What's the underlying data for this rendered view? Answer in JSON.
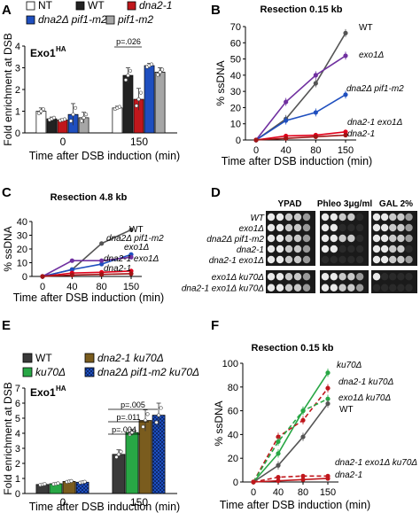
{
  "panel_letters": [
    "A",
    "B",
    "C",
    "D",
    "E",
    "F"
  ],
  "chart_data": [
    {
      "panel": "A",
      "type": "bar",
      "title": "Exo1",
      "title_sup": "HA",
      "ylabel": "Fold enrichment at DSB",
      "xlabel": "Time after DSB induction (min)",
      "ylim": [
        0,
        4
      ],
      "yticks": [
        0,
        1,
        2,
        3,
        4
      ],
      "categories": [
        "0",
        "150"
      ],
      "legend": [
        "NT",
        "WT",
        "dna2-1",
        "dna2Δ pif1-m2",
        "pif1-m2"
      ],
      "series": [
        {
          "name": "NT",
          "color": "#ffffff",
          "values": [
            1.0,
            1.15
          ],
          "errors": [
            0.15,
            0.08
          ]
        },
        {
          "name": "WT",
          "color": "#222222",
          "values": [
            0.65,
            2.65
          ],
          "errors": [
            0.08,
            0.35
          ]
        },
        {
          "name": "dna2-1",
          "color": "#c0171c",
          "values": [
            0.6,
            1.55
          ],
          "errors": [
            0.05,
            0.5
          ]
        },
        {
          "name": "dna2Δ pif1-m2",
          "color": "#1f4fbf",
          "values": [
            0.85,
            3.1
          ],
          "errors": [
            0.5,
            0.1
          ]
        },
        {
          "name": "pif1-m2",
          "color": "#a6a6a6",
          "values": [
            0.7,
            2.8
          ],
          "errors": [
            0.25,
            0.2
          ]
        }
      ],
      "annotations": [
        {
          "text": "p=.026"
        }
      ]
    },
    {
      "panel": "B",
      "type": "line",
      "title": "Resection 0.15 kb",
      "ylabel": "% ssDNA",
      "xlabel": "Time after DSB induction (min)",
      "x": [
        0,
        40,
        80,
        150
      ],
      "ylim": [
        0,
        70
      ],
      "yticks": [
        0,
        10,
        20,
        30,
        40,
        50,
        60,
        70
      ],
      "series": [
        {
          "name": "WT",
          "color": "#555555",
          "values": [
            0,
            13,
            35,
            66
          ]
        },
        {
          "name": "exo1Δ",
          "color": "#7030a0",
          "values": [
            0,
            23.5,
            40,
            52
          ]
        },
        {
          "name": "dna2Δ pif1-m2",
          "color": "#1f4fbf",
          "values": [
            0,
            12,
            17,
            28
          ]
        },
        {
          "name": "dna2-1 exo1Δ",
          "color": "#e0001a",
          "values": [
            0,
            2.5,
            3,
            5
          ]
        },
        {
          "name": "dna2-1",
          "color": "#a01515",
          "values": [
            0,
            1,
            2,
            3
          ]
        }
      ]
    },
    {
      "panel": "C",
      "type": "line",
      "title": "Resection 4.8 kb",
      "ylabel": "% ssDNA",
      "xlabel": "Time after DSB induction (min)",
      "x": [
        0,
        40,
        80,
        150
      ],
      "ylim": [
        0,
        40
      ],
      "yticks": [
        0,
        10,
        20,
        30,
        40
      ],
      "series": [
        {
          "name": "WT",
          "color": "#555555",
          "values": [
            0,
            5,
            24,
            34
          ]
        },
        {
          "name": "dna2Δ pif1-m2",
          "color": "#1f4fbf",
          "values": [
            0,
            5,
            9,
            16
          ]
        },
        {
          "name": "exo1Δ",
          "color": "#7030a0",
          "values": [
            0,
            11.5,
            11.5,
            14
          ]
        },
        {
          "name": "dna2-1 exo1Δ",
          "color": "#e0001a",
          "values": [
            0,
            2.5,
            3,
            4
          ]
        },
        {
          "name": "dna2-1",
          "color": "#a01515",
          "values": [
            0,
            1,
            1.5,
            2
          ]
        }
      ]
    },
    {
      "panel": "E",
      "type": "bar",
      "title": "Exo1",
      "title_sup": "HA",
      "ylabel": "Fold enrichment at DSB",
      "xlabel": "Time after DSB induction (min)",
      "ylim": [
        0,
        7
      ],
      "yticks": [
        0,
        1,
        2,
        3,
        4,
        5,
        6,
        7
      ],
      "categories": [
        "0",
        "150"
      ],
      "legend": [
        "WT",
        "dna2-1 ku70Δ",
        "ku70Δ",
        "dna2Δ pif1-m2 ku70Δ"
      ],
      "series": [
        {
          "name": "WT",
          "color": "#3a3a3a",
          "values": [
            0.6,
            2.6
          ],
          "errors": [
            0.05,
            0.3
          ]
        },
        {
          "name": "ku70Δ",
          "color": "#28a745",
          "values": [
            0.65,
            4.05
          ],
          "errors": [
            0.05,
            0.2
          ]
        },
        {
          "name": "dna2-1 ku70Δ",
          "color": "#7a5c1e",
          "values": [
            0.8,
            4.85
          ],
          "errors": [
            0.05,
            0.7
          ]
        },
        {
          "name": "dna2Δ pif1-m2 ku70Δ",
          "color": "#1f4fbf",
          "values": [
            0.75,
            5.2
          ],
          "errors": [
            0.05,
            0.8
          ]
        }
      ],
      "annotations": [
        {
          "text": "p=.004"
        },
        {
          "text": "p=.011"
        },
        {
          "text": "p=.005"
        }
      ]
    },
    {
      "panel": "F",
      "type": "line",
      "title": "Resection 0.15 kb",
      "ylabel": "% ssDNA",
      "xlabel": "Time after DSB induction (min)",
      "x": [
        0,
        40,
        80,
        150
      ],
      "ylim": [
        0,
        100
      ],
      "yticks": [
        0,
        20,
        40,
        60,
        80,
        100
      ],
      "series": [
        {
          "name": "ku70Δ",
          "color": "#28a745",
          "dashed": false,
          "values": [
            0,
            24,
            60,
            92
          ]
        },
        {
          "name": "dna2-1 ku70Δ",
          "color": "#c0171c",
          "dashed": true,
          "values": [
            0,
            38,
            52,
            79
          ]
        },
        {
          "name": "exo1Δ ku70Δ",
          "color": "#28a745",
          "dashed": true,
          "values": [
            0,
            34,
            60,
            70
          ]
        },
        {
          "name": "WT",
          "color": "#555555",
          "dashed": false,
          "values": [
            0,
            14,
            38,
            66
          ]
        },
        {
          "name": "dna2-1 exo1Δ ku70Δ",
          "color": "#c0171c",
          "dashed": true,
          "values": [
            0,
            4,
            5,
            5
          ]
        },
        {
          "name": "dna2-1",
          "color": "#c0171c",
          "dashed": false,
          "values": [
            0,
            1,
            2,
            3
          ]
        }
      ]
    }
  ],
  "spot_assay": {
    "panel": "D",
    "conditions": [
      "YPAD",
      "Phleo 3μg/ml",
      "GAL 2%"
    ],
    "strains_top": [
      "WT",
      "exo1Δ",
      "dna2Δ pif1-m2",
      "dna2-1",
      "dna2-1 exo1Δ"
    ],
    "strains_bottom": [
      "exo1Δ ku70Δ",
      "dna2-1 exo1Δ ku70Δ"
    ]
  }
}
